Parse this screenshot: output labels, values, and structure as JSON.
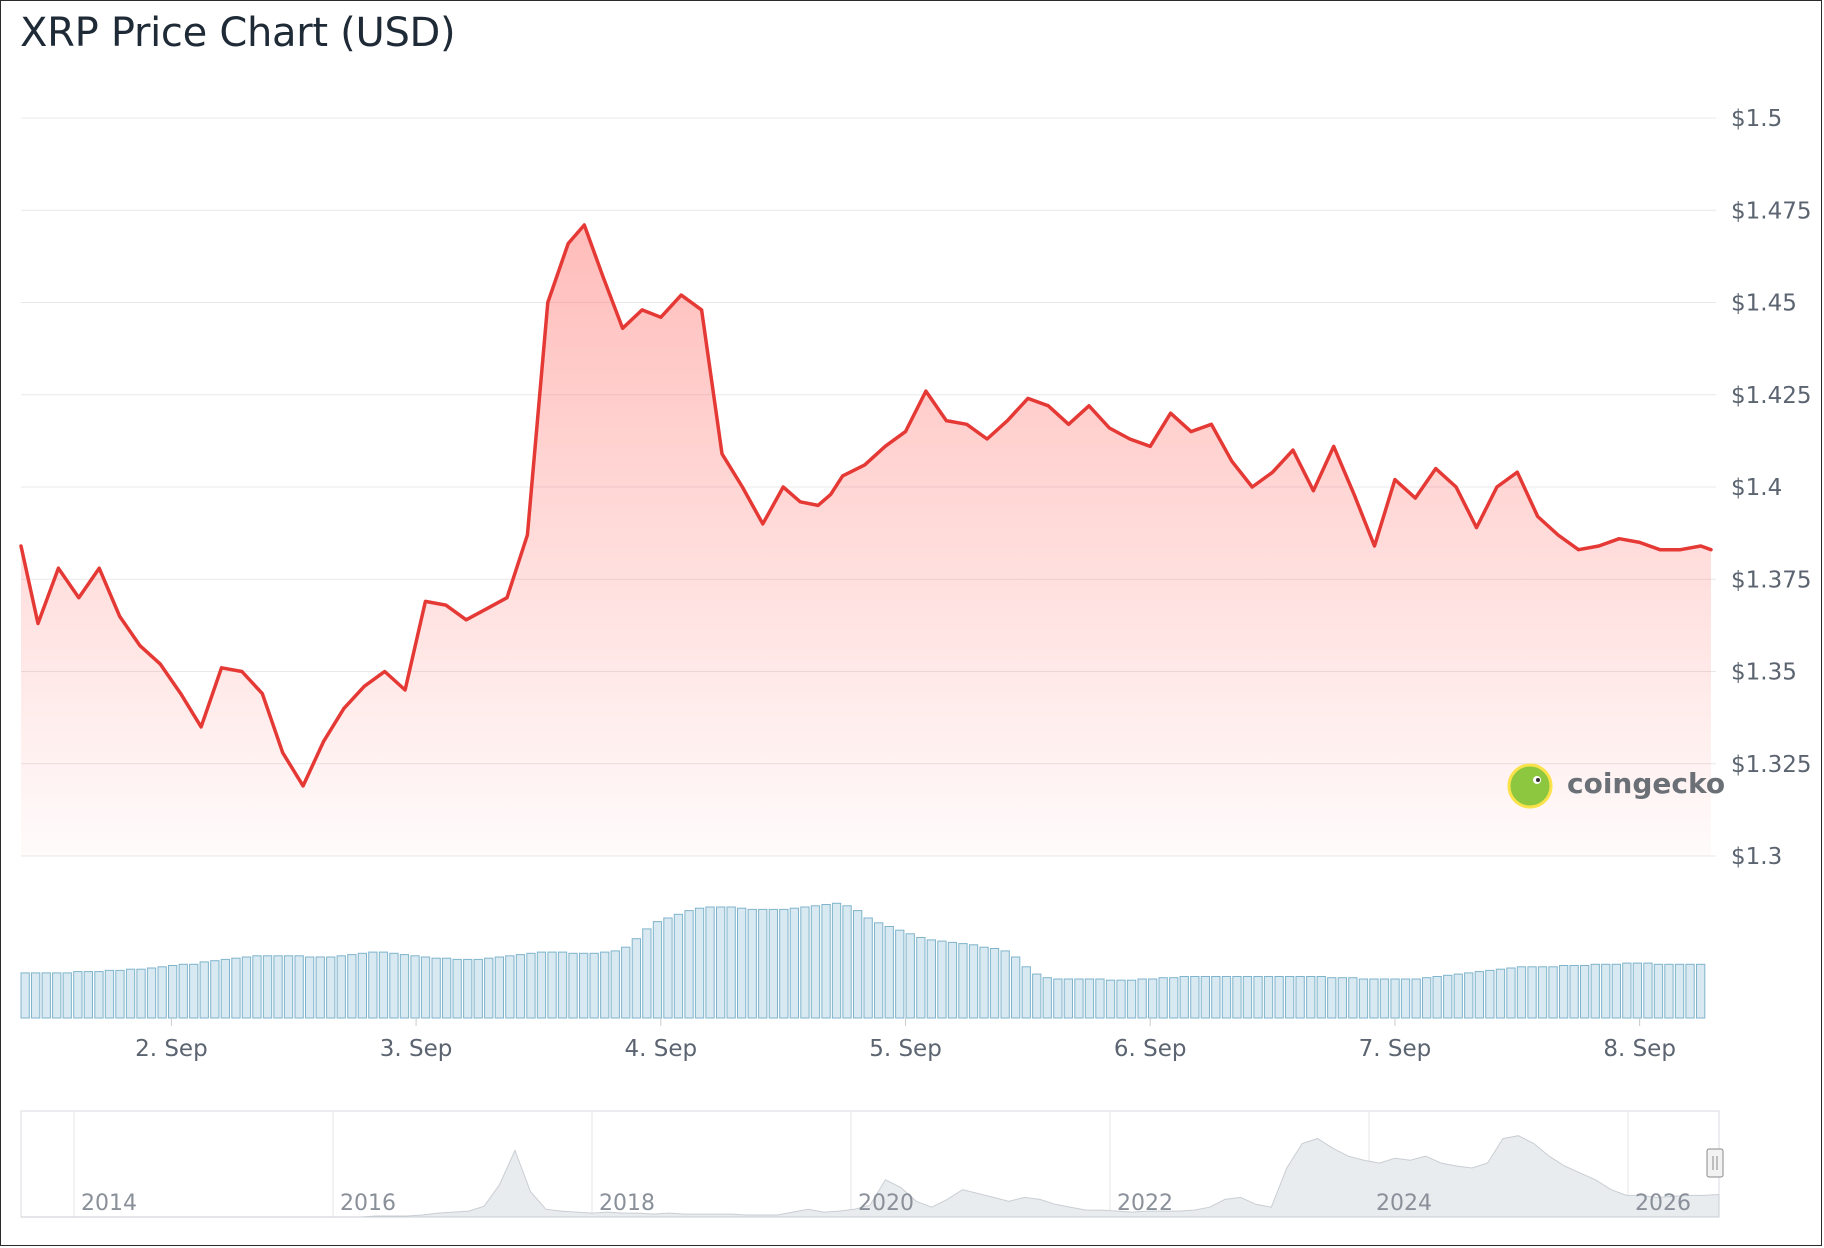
{
  "chart_data": {
    "type": "line",
    "title": "XRP Price Chart (USD)",
    "ylim": [
      1.3,
      1.5
    ],
    "y_ticks": [
      "$1.5",
      "$1.475",
      "$1.45",
      "$1.425",
      "$1.4",
      "$1.375",
      "$1.35",
      "$1.325",
      "$1.3"
    ],
    "x_ticks": [
      "2. Sep",
      "3. Sep",
      "4. Sep",
      "5. Sep",
      "6. Sep",
      "7. Sep",
      "8. Sep"
    ],
    "x_range": [
      "2025-09-01 09:15",
      "2025-09-08 07:00"
    ],
    "x_tick_dates": [
      "2025-09-02",
      "2025-09-03",
      "2025-09-04",
      "2025-09-05",
      "2025-09-06",
      "2025-09-07",
      "2025-09-08"
    ],
    "grid": true,
    "series": [
      {
        "color": "#e53935",
        "x": [
          "2025-09-01 09:15",
          "2025-09-01 10:55",
          "2025-09-01 12:55",
          "2025-09-01 14:55",
          "2025-09-01 16:55",
          "2025-09-01 18:55",
          "2025-09-01 20:55",
          "2025-09-01 22:55",
          "2025-09-02 00:55",
          "2025-09-02 02:55",
          "2025-09-02 04:55",
          "2025-09-02 06:55",
          "2025-09-02 08:55",
          "2025-09-02 10:55",
          "2025-09-02 12:55",
          "2025-09-02 14:55",
          "2025-09-02 16:55",
          "2025-09-02 18:55",
          "2025-09-02 20:55",
          "2025-09-02 22:55",
          "2025-09-03 00:55",
          "2025-09-03 02:55",
          "2025-09-03 04:55",
          "2025-09-03 06:55",
          "2025-09-03 08:55",
          "2025-09-03 10:55",
          "2025-09-03 12:55",
          "2025-09-03 14:55",
          "2025-09-03 16:30",
          "2025-09-03 18:20",
          "2025-09-03 20:15",
          "2025-09-03 22:10",
          "2025-09-04 00:00",
          "2025-09-04 02:00",
          "2025-09-04 04:00",
          "2025-09-04 06:00",
          "2025-09-04 08:00",
          "2025-09-04 10:00",
          "2025-09-04 12:00",
          "2025-09-04 13:40",
          "2025-09-04 15:25",
          "2025-09-04 16:40",
          "2025-09-04 17:50",
          "2025-09-04 20:00",
          "2025-09-04 22:00",
          "2025-09-05 00:00",
          "2025-09-05 02:00",
          "2025-09-05 04:00",
          "2025-09-05 06:00",
          "2025-09-05 08:00",
          "2025-09-05 10:00",
          "2025-09-05 12:00",
          "2025-09-05 14:00",
          "2025-09-05 16:00",
          "2025-09-05 18:00",
          "2025-09-05 20:00",
          "2025-09-05 22:00",
          "2025-09-06 00:00",
          "2025-09-06 02:00",
          "2025-09-06 04:00",
          "2025-09-06 06:00",
          "2025-09-06 08:00",
          "2025-09-06 10:00",
          "2025-09-06 12:00",
          "2025-09-06 14:00",
          "2025-09-06 16:00",
          "2025-09-06 18:00",
          "2025-09-06 20:00",
          "2025-09-06 22:00",
          "2025-09-07 00:00",
          "2025-09-07 02:00",
          "2025-09-07 04:00",
          "2025-09-07 06:00",
          "2025-09-07 08:00",
          "2025-09-07 10:00",
          "2025-09-07 12:00",
          "2025-09-07 14:00",
          "2025-09-07 16:00",
          "2025-09-07 18:00",
          "2025-09-07 20:00",
          "2025-09-07 22:00",
          "2025-09-08 00:00",
          "2025-09-08 02:00",
          "2025-09-08 04:00",
          "2025-09-08 06:00",
          "2025-09-08 07:00"
        ],
        "values": [
          1.384,
          1.363,
          1.378,
          1.37,
          1.378,
          1.365,
          1.357,
          1.352,
          1.344,
          1.335,
          1.351,
          1.35,
          1.344,
          1.328,
          1.319,
          1.331,
          1.34,
          1.346,
          1.35,
          1.345,
          1.369,
          1.368,
          1.364,
          1.367,
          1.37,
          1.387,
          1.45,
          1.466,
          1.471,
          1.457,
          1.443,
          1.448,
          1.446,
          1.452,
          1.448,
          1.409,
          1.4,
          1.39,
          1.4,
          1.396,
          1.395,
          1.398,
          1.403,
          1.406,
          1.411,
          1.415,
          1.426,
          1.418,
          1.417,
          1.413,
          1.418,
          1.424,
          1.422,
          1.417,
          1.422,
          1.416,
          1.413,
          1.411,
          1.42,
          1.415,
          1.417,
          1.407,
          1.4,
          1.404,
          1.41,
          1.399,
          1.411,
          1.398,
          1.384,
          1.402,
          1.397,
          1.405,
          1.4,
          1.389,
          1.4,
          1.404,
          1.392,
          1.387,
          1.383,
          1.384,
          1.386,
          1.385,
          1.383,
          1.383,
          1.384,
          1.383
        ]
      }
    ],
    "volume_relative": [
      0.37,
      0.37,
      0.37,
      0.37,
      0.37,
      0.38,
      0.38,
      0.38,
      0.39,
      0.39,
      0.4,
      0.4,
      0.41,
      0.42,
      0.43,
      0.44,
      0.44,
      0.46,
      0.47,
      0.48,
      0.49,
      0.5,
      0.51,
      0.51,
      0.51,
      0.51,
      0.51,
      0.5,
      0.5,
      0.5,
      0.51,
      0.52,
      0.53,
      0.54,
      0.54,
      0.53,
      0.52,
      0.51,
      0.5,
      0.49,
      0.49,
      0.48,
      0.48,
      0.48,
      0.49,
      0.5,
      0.51,
      0.52,
      0.53,
      0.54,
      0.54,
      0.54,
      0.53,
      0.53,
      0.53,
      0.54,
      0.55,
      0.58,
      0.65,
      0.73,
      0.79,
      0.82,
      0.85,
      0.88,
      0.9,
      0.91,
      0.91,
      0.91,
      0.9,
      0.89,
      0.89,
      0.89,
      0.89,
      0.9,
      0.91,
      0.92,
      0.93,
      0.94,
      0.92,
      0.88,
      0.82,
      0.78,
      0.75,
      0.72,
      0.69,
      0.66,
      0.64,
      0.63,
      0.62,
      0.61,
      0.6,
      0.58,
      0.57,
      0.55,
      0.5,
      0.42,
      0.36,
      0.33,
      0.32,
      0.32,
      0.32,
      0.32,
      0.32,
      0.31,
      0.31,
      0.31,
      0.32,
      0.32,
      0.33,
      0.33,
      0.34,
      0.34,
      0.34,
      0.34,
      0.34,
      0.34,
      0.34,
      0.34,
      0.34,
      0.34,
      0.34,
      0.34,
      0.34,
      0.34,
      0.33,
      0.33,
      0.33,
      0.32,
      0.32,
      0.32,
      0.32,
      0.32,
      0.32,
      0.33,
      0.34,
      0.35,
      0.36,
      0.37,
      0.38,
      0.39,
      0.4,
      0.41,
      0.42,
      0.42,
      0.42,
      0.42,
      0.43,
      0.43,
      0.43,
      0.44,
      0.44,
      0.44,
      0.45,
      0.45,
      0.45,
      0.44,
      0.44,
      0.44,
      0.44,
      0.44
    ]
  },
  "navigator": {
    "years": [
      "2014",
      "2016",
      "2018",
      "2020",
      "2022",
      "2024",
      "2026"
    ],
    "series": [
      0.0,
      0.0,
      0.0,
      0.0,
      0.0,
      0.0,
      0.0,
      0.0,
      0.0,
      0.0,
      0.0,
      0.0,
      0.0,
      0.0,
      0.0,
      0.0,
      0.0,
      0.0,
      0.0,
      0.0,
      0.0,
      0.0,
      0.0,
      0.01,
      0.01,
      0.01,
      0.02,
      0.04,
      0.05,
      0.06,
      0.11,
      0.33,
      0.68,
      0.26,
      0.08,
      0.06,
      0.05,
      0.04,
      0.05,
      0.04,
      0.04,
      0.03,
      0.04,
      0.03,
      0.03,
      0.03,
      0.03,
      0.02,
      0.02,
      0.02,
      0.05,
      0.08,
      0.05,
      0.06,
      0.08,
      0.12,
      0.38,
      0.3,
      0.16,
      0.1,
      0.18,
      0.28,
      0.24,
      0.2,
      0.16,
      0.2,
      0.18,
      0.13,
      0.1,
      0.07,
      0.07,
      0.06,
      0.05,
      0.06,
      0.06,
      0.06,
      0.07,
      0.1,
      0.18,
      0.2,
      0.13,
      0.1,
      0.5,
      0.75,
      0.8,
      0.7,
      0.62,
      0.58,
      0.55,
      0.6,
      0.58,
      0.62,
      0.55,
      0.52,
      0.5,
      0.55,
      0.8,
      0.83,
      0.75,
      0.62,
      0.52,
      0.45,
      0.38,
      0.28,
      0.22,
      0.22,
      0.2,
      0.21,
      0.22,
      0.22,
      0.23
    ]
  },
  "watermark": {
    "text": "coingecko"
  },
  "colors": {
    "line": "#e53935",
    "volume_fill": "#d8e9f1",
    "volume_stroke": "#7fb4cc",
    "grid": "#e8e8e8",
    "navigator_fill": "#e9ecef"
  }
}
